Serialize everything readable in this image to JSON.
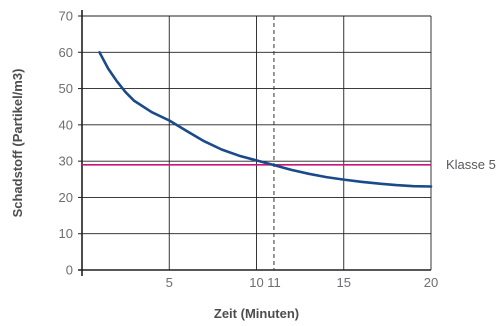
{
  "chart_data": {
    "type": "line",
    "xlabel": "Zeit (Minuten)",
    "ylabel": "Schadstoff (Partikel/m3)",
    "xlim": [
      0,
      20
    ],
    "ylim": [
      0,
      70
    ],
    "x_ticks": [
      5,
      10,
      11,
      15,
      20
    ],
    "y_ticks": [
      0,
      10,
      20,
      30,
      40,
      50,
      60,
      70
    ],
    "grid": true,
    "series": [
      {
        "color": "#1a4a8a",
        "x": [
          1,
          1.5,
          2,
          2.5,
          3,
          4,
          5,
          6,
          7,
          8,
          9,
          10,
          11,
          12,
          13,
          14,
          15,
          16,
          17,
          18,
          19,
          20
        ],
        "y": [
          60,
          55.5,
          52,
          49,
          46.6,
          43.5,
          41.2,
          38.3,
          35.5,
          33.2,
          31.5,
          30.2,
          28.9,
          27.6,
          26.5,
          25.6,
          24.9,
          24.3,
          23.8,
          23.4,
          23.1,
          23
        ]
      }
    ],
    "reference_line": {
      "y": 29,
      "color": "#c8157a",
      "label": "Klasse 5"
    },
    "marker_line": {
      "x": 11,
      "style": "dashed",
      "color": "#333333"
    }
  }
}
